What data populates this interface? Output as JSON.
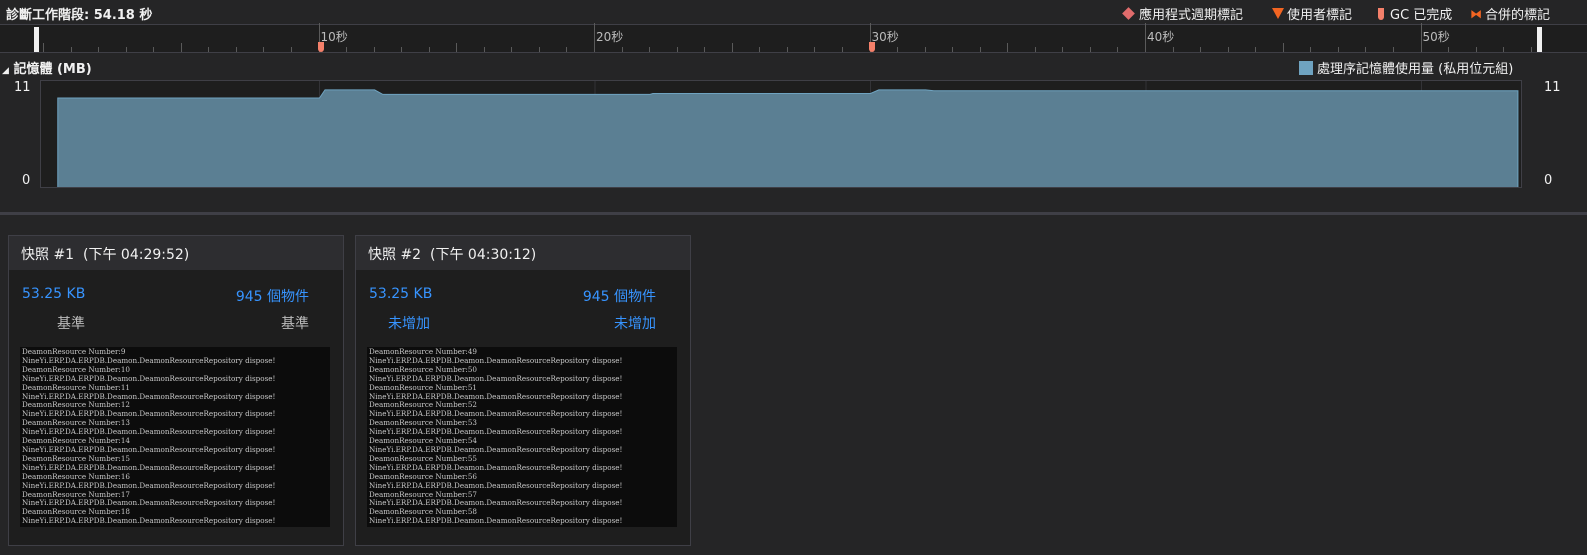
{
  "header": {
    "title": "診斷工作階段: 54.18 秒"
  },
  "legend": [
    {
      "icon": "diamond-icon",
      "label": "應用程式週期標記",
      "color": "#e06c6c"
    },
    {
      "icon": "triangle-down-icon",
      "label": "使用者標記",
      "color": "#f26522"
    },
    {
      "icon": "gc-marker-icon",
      "label": "GC 已完成",
      "color": "#f4806a"
    },
    {
      "icon": "merged-marker-icon",
      "label": "合併的標記",
      "color": "#f26522"
    }
  ],
  "ruler": {
    "labels": [
      "10秒",
      "20秒",
      "30秒",
      "40秒",
      "50秒"
    ],
    "gc_markers_sec": [
      10.1,
      30.1
    ]
  },
  "memory": {
    "title": "記憶體 (MB)",
    "series_label": "處理序記憶體使用量 (私用位元組)",
    "series_color": "#6fa3c0",
    "y_top": "11",
    "y_bottom": "0",
    "chart_data": {
      "type": "area",
      "xlabel": "",
      "ylabel": "",
      "ylim": [
        0,
        11
      ],
      "xlim": [
        0,
        54.18
      ],
      "x": [
        0.5,
        10.0,
        10.2,
        12.0,
        12.3,
        22.0,
        22.1,
        30.0,
        30.3,
        32.0,
        32.3,
        53.5
      ],
      "y": [
        10.0,
        10.0,
        10.9,
        10.9,
        10.4,
        10.4,
        10.5,
        10.5,
        10.9,
        10.9,
        10.8,
        10.8
      ]
    }
  },
  "snapshots": [
    {
      "title": "快照 #1",
      "time": "(下午 04:29:52)",
      "size": "53.25 KB",
      "objects": "945 個物件",
      "size_diff": "基準",
      "objects_diff": "基準",
      "console": [
        "DeamonResource Number:9",
        "NineYi.ERP.DA.ERPDB.Deamon.DeamonResourceRepository dispose!",
        "DeamonResource Number:10",
        "NineYi.ERP.DA.ERPDB.Deamon.DeamonResourceRepository dispose!",
        "DeamonResource Number:11",
        "NineYi.ERP.DA.ERPDB.Deamon.DeamonResourceRepository dispose!",
        "DeamonResource Number:12",
        "NineYi.ERP.DA.ERPDB.Deamon.DeamonResourceRepository dispose!",
        "DeamonResource Number:13",
        "NineYi.ERP.DA.ERPDB.Deamon.DeamonResourceRepository dispose!",
        "DeamonResource Number:14",
        "NineYi.ERP.DA.ERPDB.Deamon.DeamonResourceRepository dispose!",
        "DeamonResource Number:15",
        "NineYi.ERP.DA.ERPDB.Deamon.DeamonResourceRepository dispose!",
        "DeamonResource Number:16",
        "NineYi.ERP.DA.ERPDB.Deamon.DeamonResourceRepository dispose!",
        "DeamonResource Number:17",
        "NineYi.ERP.DA.ERPDB.Deamon.DeamonResourceRepository dispose!",
        "DeamonResource Number:18",
        "NineYi.ERP.DA.ERPDB.Deamon.DeamonResourceRepository dispose!"
      ]
    },
    {
      "title": "快照 #2",
      "time": "(下午 04:30:12)",
      "size": "53.25 KB",
      "objects": "945 個物件",
      "size_diff": "未增加",
      "objects_diff": "未增加",
      "console": [
        "DeamonResource Number:49",
        "NineYi.ERP.DA.ERPDB.Deamon.DeamonResourceRepository dispose!",
        "DeamonResource Number:50",
        "NineYi.ERP.DA.ERPDB.Deamon.DeamonResourceRepository dispose!",
        "DeamonResource Number:51",
        "NineYi.ERP.DA.ERPDB.Deamon.DeamonResourceRepository dispose!",
        "DeamonResource Number:52",
        "NineYi.ERP.DA.ERPDB.Deamon.DeamonResourceRepository dispose!",
        "DeamonResource Number:53",
        "NineYi.ERP.DA.ERPDB.Deamon.DeamonResourceRepository dispose!",
        "DeamonResource Number:54",
        "NineYi.ERP.DA.ERPDB.Deamon.DeamonResourceRepository dispose!",
        "DeamonResource Number:55",
        "NineYi.ERP.DA.ERPDB.Deamon.DeamonResourceRepository dispose!",
        "DeamonResource Number:56",
        "NineYi.ERP.DA.ERPDB.Deamon.DeamonResourceRepository dispose!",
        "DeamonResource Number:57",
        "NineYi.ERP.DA.ERPDB.Deamon.DeamonResourceRepository dispose!",
        "DeamonResource Number:58",
        "NineYi.ERP.DA.ERPDB.Deamon.DeamonResourceRepository dispose!"
      ]
    }
  ]
}
